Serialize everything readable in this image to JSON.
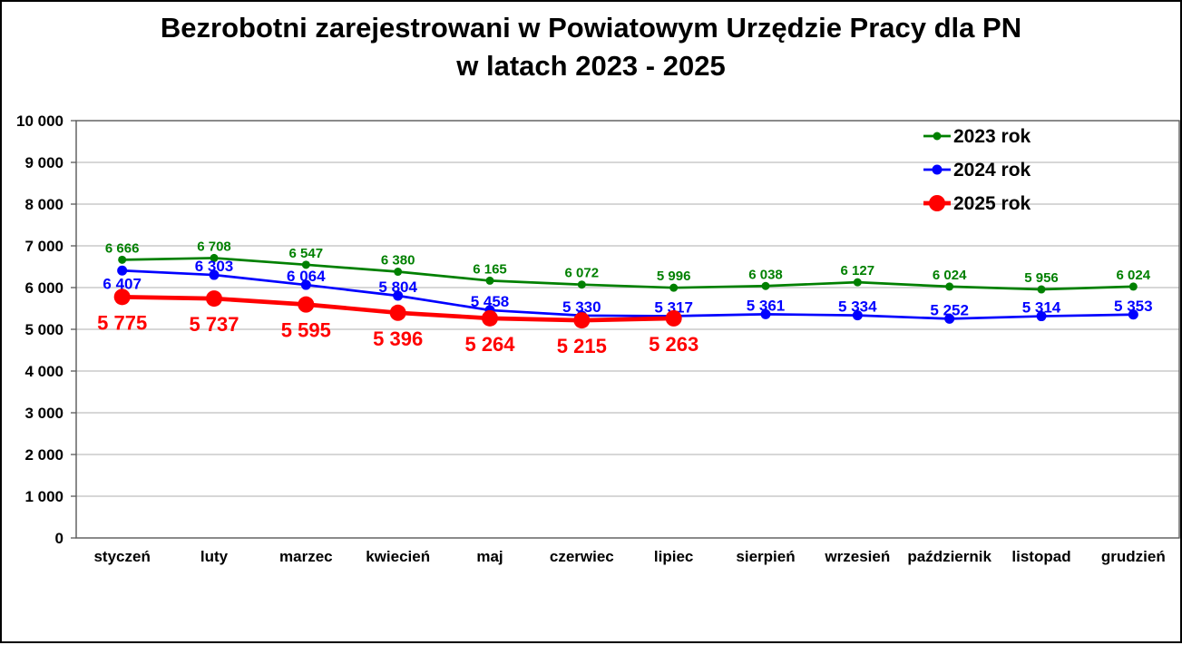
{
  "title": {
    "line1": "Bezrobotni zarejestrowani w Powiatowym Urzędzie Pracy dla PN",
    "line2": "w latach 2023 - 2025"
  },
  "chart_data": {
    "type": "line",
    "categories": [
      "styczeń",
      "luty",
      "marzec",
      "kwiecień",
      "maj",
      "czerwiec",
      "lipiec",
      "sierpień",
      "wrzesień",
      "październik",
      "listopad",
      "grudzień"
    ],
    "series": [
      {
        "name": "2023 rok",
        "color": "#008000",
        "values": [
          6666,
          6708,
          6547,
          6380,
          6165,
          6072,
          5996,
          6038,
          6127,
          6024,
          5956,
          6024
        ],
        "label_position": "above",
        "label_exceptions": {}
      },
      {
        "name": "2024 rok",
        "color": "#0000FF",
        "values": [
          6407,
          6303,
          6064,
          5804,
          5458,
          5330,
          5317,
          5361,
          5334,
          5252,
          5314,
          5353
        ],
        "label_position": "above",
        "label_exceptions": {
          "0": "below"
        }
      },
      {
        "name": "2025 rok",
        "color": "#FF0000",
        "values": [
          5775,
          5737,
          5595,
          5396,
          5264,
          5215,
          5263
        ],
        "label_position": "below",
        "label_exceptions": {}
      }
    ],
    "ylim": [
      0,
      10000
    ],
    "ytick_step": 1000,
    "grid": true,
    "legend_position": "top-right",
    "number_format": "space thousands separator",
    "axis_color": "#595959",
    "gridline_color": "#BFBFBF",
    "text_color": "#000000"
  }
}
